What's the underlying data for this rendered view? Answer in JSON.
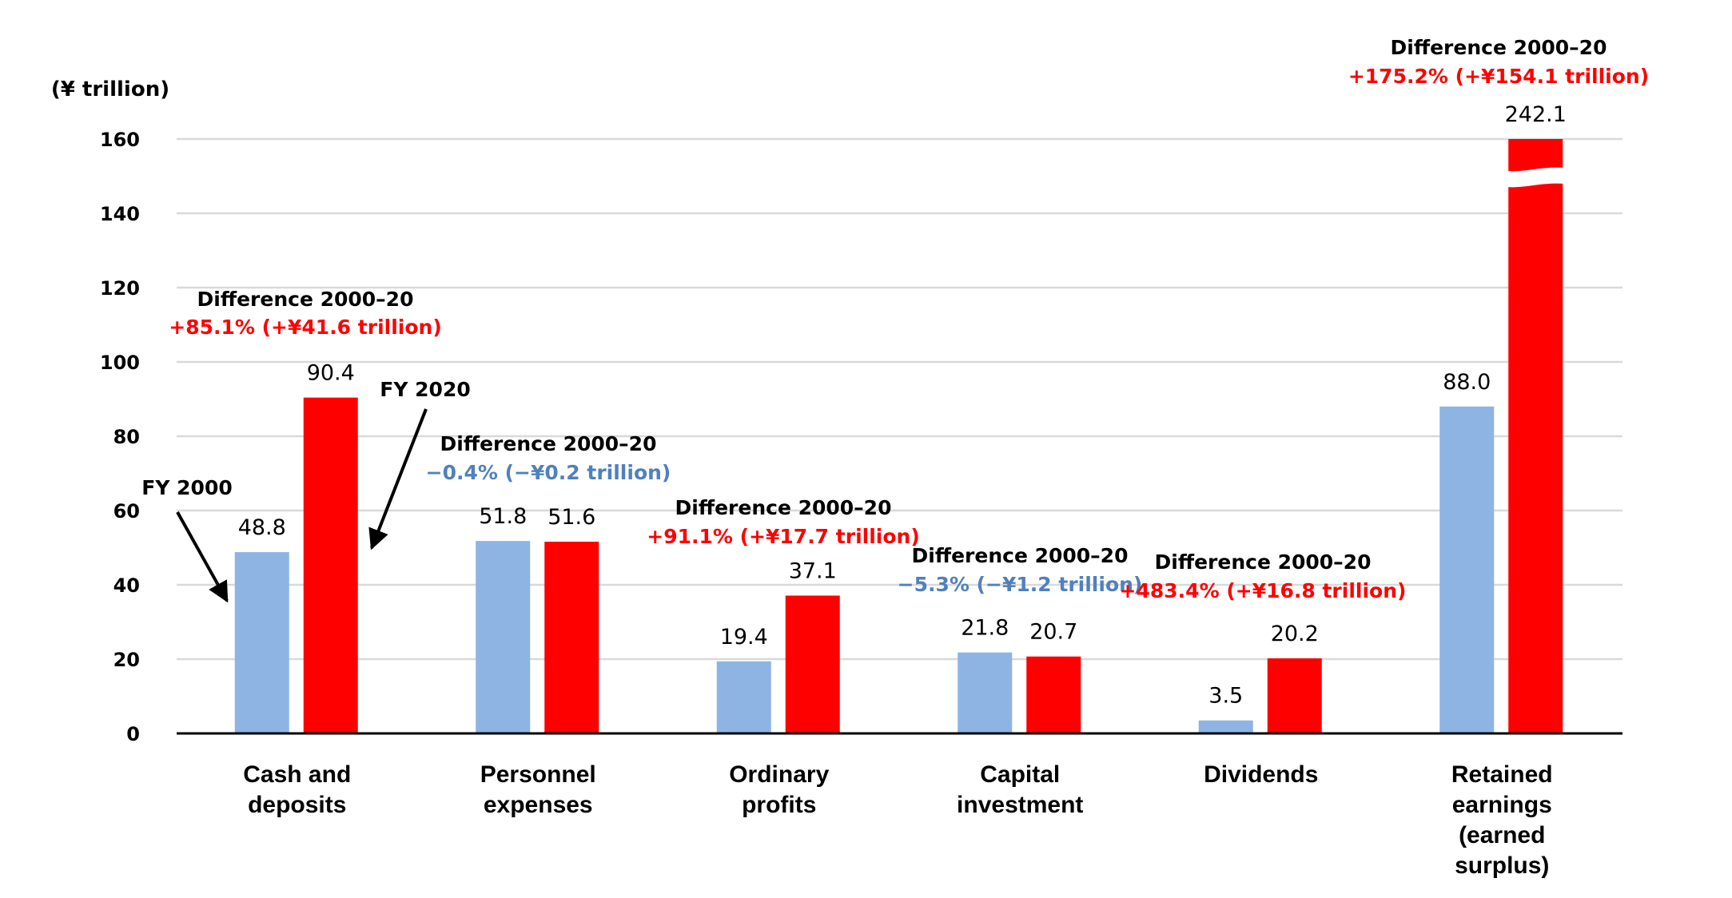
{
  "chart_data": {
    "type": "bar",
    "title": "",
    "ylabel": "(¥ trillion)",
    "xlabel": "",
    "ylim": [
      0,
      160
    ],
    "yticks": [
      0,
      20,
      40,
      60,
      80,
      100,
      120,
      140,
      160
    ],
    "ytick_labels": [
      "0",
      "20",
      "40",
      "60",
      "80",
      "100",
      "120",
      "140",
      "160"
    ],
    "grid": true,
    "legend": "none (callout arrows label the series)",
    "categories": [
      [
        "Cash and",
        "deposits"
      ],
      [
        "Personnel",
        "expenses"
      ],
      [
        "Ordinary",
        "profits"
      ],
      [
        "Capital",
        "investment"
      ],
      [
        "Dividends"
      ],
      [
        "Retained",
        "earnings",
        "(earned",
        "surplus)"
      ]
    ],
    "series": [
      {
        "name": "FY 2000",
        "color": "#8EB4E3",
        "values": [
          48.8,
          51.8,
          19.4,
          21.8,
          3.5,
          88.0
        ],
        "labels": [
          "48.8",
          "51.8",
          "19.4",
          "21.8",
          "3.5",
          "88.0"
        ]
      },
      {
        "name": "FY 2020",
        "color": "#FF0000",
        "values": [
          90.4,
          51.6,
          37.1,
          20.7,
          20.2,
          242.1
        ],
        "labels": [
          "90.4",
          "51.6",
          "37.1",
          "20.7",
          "20.2",
          "242.1"
        ]
      }
    ],
    "axis_break": {
      "category_index": 5,
      "series": "FY 2020",
      "note": "bar truncated at axis top (value exceeds 160)"
    },
    "annotations": [
      {
        "heading": "Difference 2000–20",
        "text": "+85.1% (+¥41.6 trillion)",
        "color": "#FF0000"
      },
      {
        "heading": "Difference 2000–20",
        "text": "−0.4% (−¥0.2 trillion)",
        "color": "#4F81BD"
      },
      {
        "heading": "Difference 2000–20",
        "text": "+91.1% (+¥17.7 trillion)",
        "color": "#FF0000"
      },
      {
        "heading": "Difference 2000–20",
        "text": "−5.3% (−¥1.2 trillion)",
        "color": "#4F81BD"
      },
      {
        "heading": "Difference 2000–20",
        "text": "+483.4% (+¥16.8 trillion)",
        "color": "#FF0000"
      },
      {
        "heading": "Difference 2000–20",
        "text": "+175.2% (+¥154.1 trillion)",
        "color": "#FF0000"
      }
    ],
    "callouts": [
      {
        "label": "FY 2000",
        "points_to": "FY 2000 bar (Cash and deposits)"
      },
      {
        "label": "FY 2020",
        "points_to": "FY 2020 bar (Cash and deposits)"
      }
    ]
  },
  "colors": {
    "fy2000": "#8EB4E3",
    "fy2020": "#FF0000",
    "decrease_text": "#4F81BD",
    "increase_text": "#FF0000",
    "gridline": "#D9D9D9",
    "axis": "#000000"
  }
}
